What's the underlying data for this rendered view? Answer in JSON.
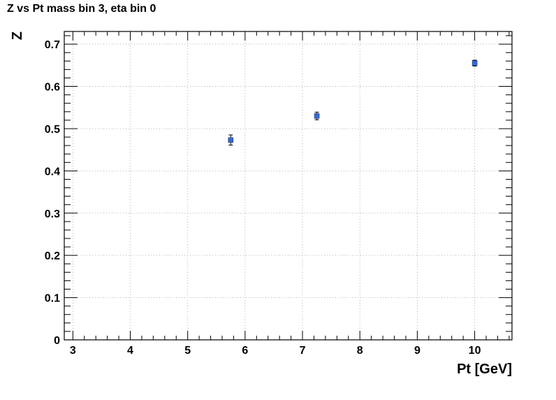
{
  "chart_data": {
    "type": "scatter",
    "title": "Z vs Pt mass bin 3, eta bin 0",
    "xlabel": "Pt [GeV]",
    "ylabel": "Z",
    "xlim": [
      2.85,
      10.65
    ],
    "ylim": [
      0,
      0.73
    ],
    "xticks": [
      3,
      4,
      5,
      6,
      7,
      8,
      9,
      10
    ],
    "yticks": [
      0,
      0.1,
      0.2,
      0.3,
      0.4,
      0.5,
      0.6,
      0.7
    ],
    "grid": true,
    "series": [
      {
        "x": [
          5.75,
          7.25,
          10.0
        ],
        "y": [
          0.473,
          0.53,
          0.655
        ],
        "yerr": [
          0.012,
          0.009,
          0.007
        ]
      }
    ],
    "marker_color": "#3a68c8"
  }
}
